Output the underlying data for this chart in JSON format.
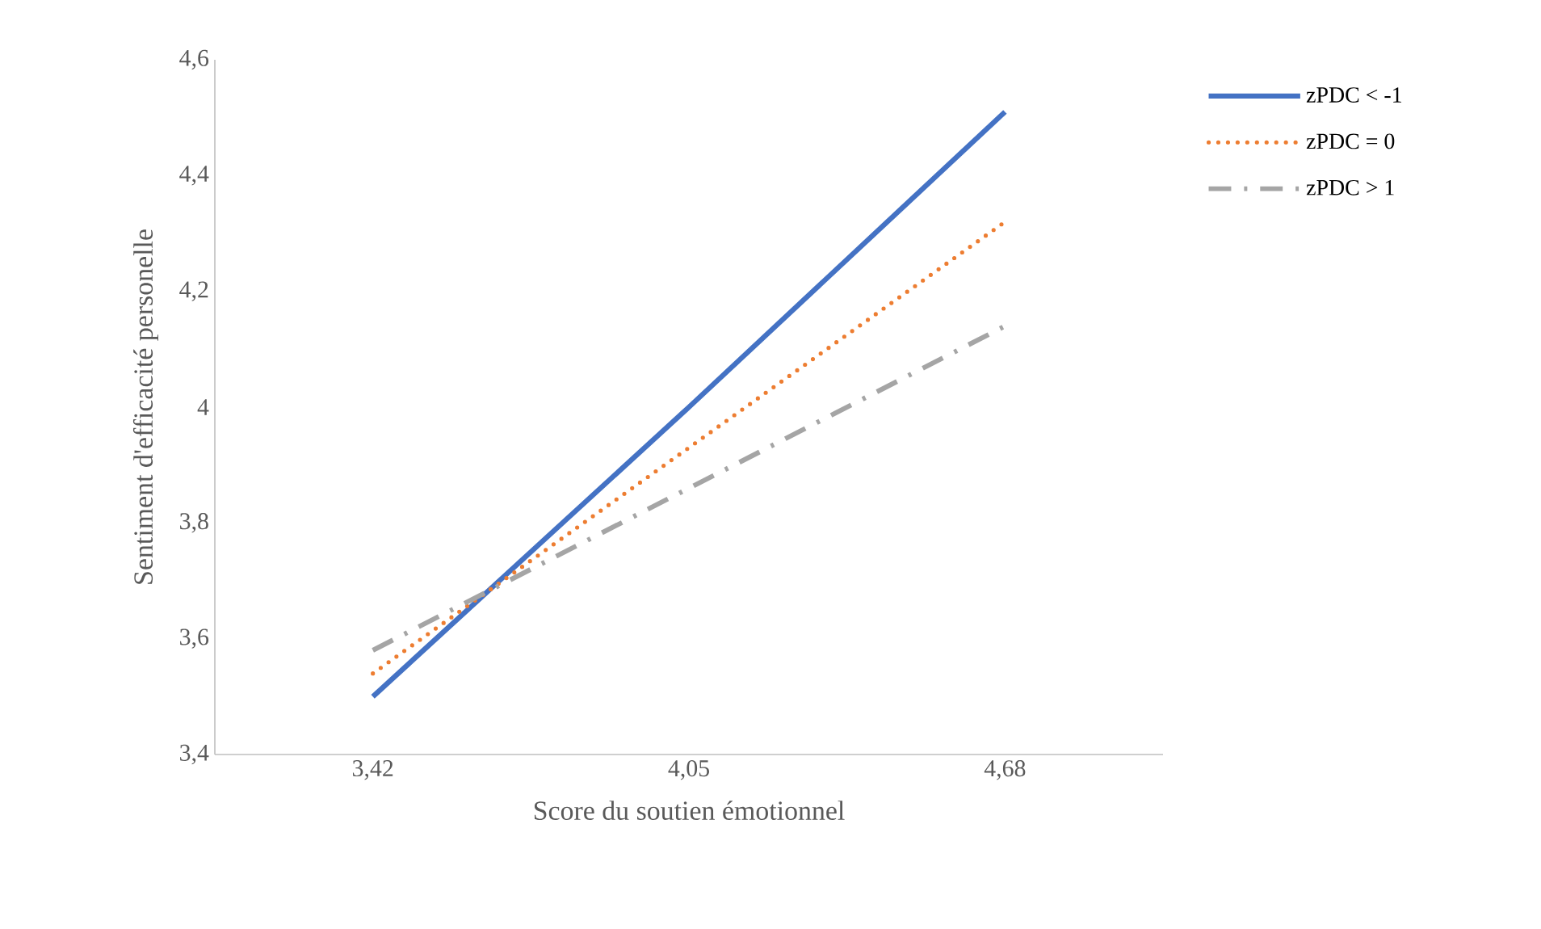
{
  "chart_data": {
    "type": "line",
    "xlabel": "Score du soutien émotionnel",
    "ylabel": "Sentiment d'efficacité personelle",
    "categories": [
      "3,42",
      "4,05",
      "4,68"
    ],
    "series": [
      {
        "name": "zPDC < -1",
        "color": "#4472c4",
        "line_style": "solid",
        "values": [
          3.5,
          4.0,
          4.51
        ]
      },
      {
        "name": "zPDC = 0",
        "color": "#ed7d31",
        "line_style": "dotted",
        "values": [
          3.54,
          3.93,
          4.32
        ]
      },
      {
        "name": "zPDC > 1",
        "color": "#a5a5a5",
        "line_style": "dashed",
        "values": [
          3.58,
          3.86,
          4.14
        ]
      }
    ],
    "ylim": [
      3.4,
      4.6
    ],
    "yticks": [
      {
        "value": 3.4,
        "label": "3,4"
      },
      {
        "value": 3.6,
        "label": "3,6"
      },
      {
        "value": 3.8,
        "label": "3,8"
      },
      {
        "value": 4.0,
        "label": "4"
      },
      {
        "value": 4.2,
        "label": "4,2"
      },
      {
        "value": 4.4,
        "label": "4,4"
      },
      {
        "value": 4.6,
        "label": "4,6"
      }
    ],
    "grid": false,
    "legend": "right"
  }
}
